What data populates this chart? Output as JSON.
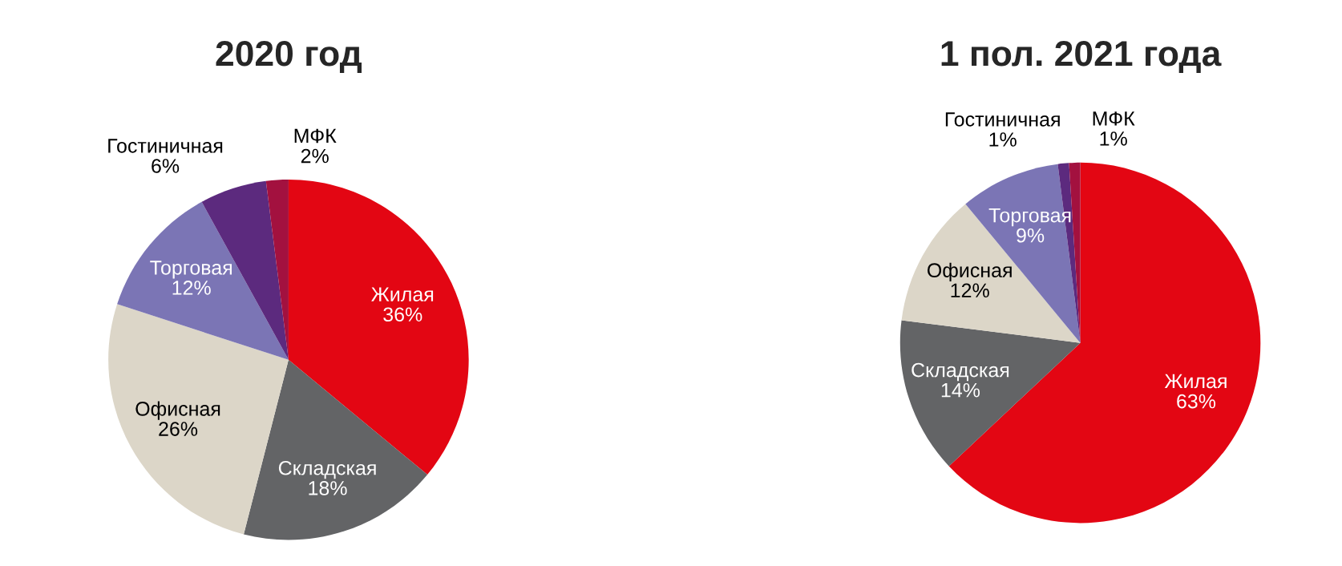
{
  "chart_data": [
    {
      "type": "pie",
      "title": "2020 год",
      "categories": [
        "Жилая",
        "Складская",
        "Офисная",
        "Торговая",
        "Гостиничная",
        "МФК"
      ],
      "values": [
        36,
        18,
        26,
        12,
        6,
        2
      ],
      "value_labels": [
        "36%",
        "18%",
        "26%",
        "12%",
        "6%",
        "2%"
      ],
      "colors": [
        "#e30613",
        "#636466",
        "#dcd6c8",
        "#7b75b5",
        "#5c2a7e",
        "#a3113f"
      ]
    },
    {
      "type": "pie",
      "title": "1 пол. 2021 года",
      "categories": [
        "Жилая",
        "Складская",
        "Офисная",
        "Торговая",
        "Гостиничная",
        "МФК"
      ],
      "values": [
        63,
        14,
        12,
        9,
        1,
        1
      ],
      "value_labels": [
        "63%",
        "14%",
        "12%",
        "9%",
        "1%",
        "1%"
      ],
      "colors": [
        "#e30613",
        "#636466",
        "#dcd6c8",
        "#7b75b5",
        "#5c2a7e",
        "#a3113f"
      ]
    }
  ]
}
